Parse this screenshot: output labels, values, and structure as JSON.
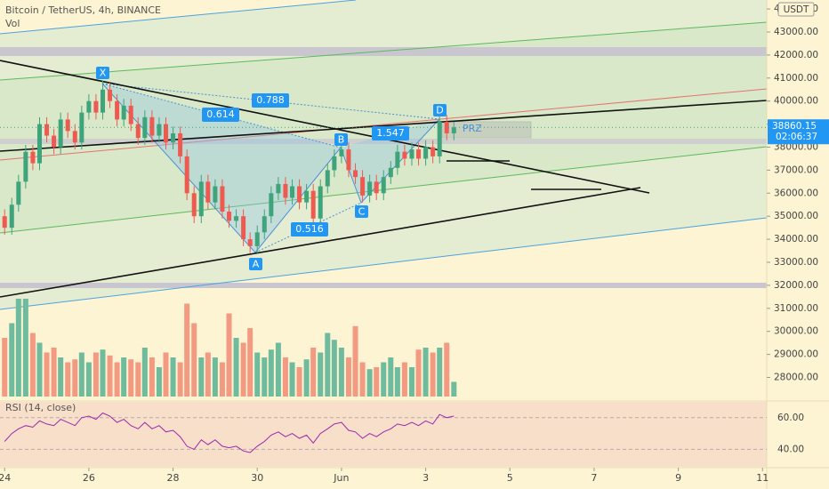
{
  "chart_data": {
    "type": "candlestick",
    "title": "Bitcoin / TetherUS, 4h, BINANCE",
    "currency": "USDT",
    "x": [
      0,
      0.17,
      0.33,
      0.5,
      0.67,
      0.83,
      1,
      1.17,
      1.33,
      1.5,
      1.67,
      1.83,
      2,
      2.17,
      2.33,
      2.5,
      2.67,
      2.83,
      3,
      3.17,
      3.33,
      3.5,
      3.67,
      3.83,
      4,
      4.17,
      4.33,
      4.5,
      4.67,
      4.83,
      5,
      5.17,
      5.33,
      5.5,
      5.67,
      5.83,
      6,
      6.17,
      6.33,
      6.5,
      6.67,
      6.83,
      7,
      7.17,
      7.33,
      7.5,
      7.67,
      7.83,
      8,
      8.17,
      8.33,
      8.5,
      8.67,
      8.83,
      9,
      9.17,
      9.33,
      9.5,
      9.67,
      9.83,
      10,
      10.17,
      10.33,
      10.5,
      10.67
    ],
    "open": [
      35000,
      34500,
      35500,
      36500,
      37800,
      37300,
      39000,
      38500,
      38000,
      39200,
      38700,
      38200,
      39500,
      40000,
      39500,
      40500,
      40000,
      39200,
      39800,
      39000,
      38400,
      39300,
      38500,
      39000,
      38200,
      38600,
      37600,
      36000,
      35000,
      36500,
      35600,
      36300,
      35200,
      34800,
      35000,
      34000,
      33700,
      34300,
      35000,
      36000,
      36400,
      35800,
      36300,
      35600,
      36100,
      34900,
      36300,
      37000,
      37600,
      37900,
      37000,
      36700,
      35900,
      36500,
      36000,
      36700,
      37100,
      37800,
      37500,
      37900,
      37500,
      38000,
      37600,
      39100,
      38600
    ],
    "high": [
      35300,
      35800,
      36800,
      38100,
      38100,
      39300,
      39300,
      38800,
      39500,
      39500,
      39000,
      39800,
      40300,
      40300,
      40900,
      40800,
      40300,
      40100,
      40100,
      39300,
      39600,
      39600,
      39300,
      39300,
      38900,
      38900,
      37900,
      36300,
      36800,
      36800,
      36600,
      36600,
      35500,
      35300,
      35300,
      34300,
      34600,
      35300,
      36300,
      36700,
      36700,
      36600,
      36600,
      36400,
      36400,
      36600,
      37300,
      37900,
      38200,
      38200,
      37300,
      37000,
      36800,
      36800,
      37000,
      37400,
      38100,
      38100,
      38200,
      38200,
      38300,
      38300,
      39500,
      39400,
      39100
    ],
    "low": [
      34200,
      34200,
      35200,
      36200,
      37000,
      37000,
      38200,
      37700,
      37700,
      38400,
      37900,
      37900,
      39200,
      39200,
      39200,
      39700,
      38900,
      38900,
      38700,
      38100,
      38100,
      38200,
      38200,
      37900,
      37900,
      37300,
      35700,
      34700,
      34700,
      35300,
      35300,
      34900,
      34500,
      34500,
      33700,
      33400,
      33400,
      34000,
      34700,
      35700,
      35500,
      35500,
      35300,
      35300,
      34600,
      34600,
      36000,
      36700,
      37300,
      36700,
      36400,
      35600,
      35600,
      35700,
      35700,
      36400,
      36800,
      37200,
      37200,
      37200,
      37200,
      37300,
      37300,
      38300,
      38300
    ],
    "close": [
      34500,
      35500,
      36500,
      37800,
      37300,
      39000,
      38500,
      38000,
      39200,
      38700,
      38200,
      39500,
      40000,
      39500,
      40500,
      40000,
      39200,
      39800,
      39000,
      38400,
      39300,
      38500,
      39000,
      38200,
      38600,
      37600,
      36000,
      35000,
      36500,
      35600,
      36300,
      35200,
      34800,
      35000,
      34000,
      33700,
      34300,
      35000,
      36000,
      36400,
      35800,
      36300,
      35600,
      36100,
      34900,
      36300,
      37000,
      37600,
      37900,
      37000,
      36700,
      35900,
      36500,
      36000,
      36700,
      37100,
      37800,
      37500,
      37900,
      37500,
      38000,
      37600,
      39100,
      38600,
      38860
    ],
    "colors": {
      "up": "#3fa37c",
      "down": "#ef5a50",
      "volume_up": "#6fbb9e",
      "volume_down": "#f39a83"
    },
    "xlim": [
      -0.11,
      18.1
    ],
    "xticks": [
      {
        "value": 0,
        "label": "24"
      },
      {
        "value": 2,
        "label": "26"
      },
      {
        "value": 4,
        "label": "28"
      },
      {
        "value": 6,
        "label": "30"
      },
      {
        "value": 8,
        "label": "Jun"
      },
      {
        "value": 10,
        "label": "3"
      },
      {
        "value": 12,
        "label": "5"
      },
      {
        "value": 14,
        "label": "7"
      },
      {
        "value": 16,
        "label": "9"
      },
      {
        "value": 18,
        "label": "11"
      }
    ],
    "ylim": [
      27170,
      44390
    ],
    "yticks": [
      {
        "value": 28000,
        "label": "28000.00"
      },
      {
        "value": 29000,
        "label": "29000.00"
      },
      {
        "value": 30000,
        "label": "30000.00"
      },
      {
        "value": 31000,
        "label": "31000.00"
      },
      {
        "value": 32000,
        "label": "32000.00"
      },
      {
        "value": 33000,
        "label": "33000.00"
      },
      {
        "value": 34000,
        "label": "34000.00"
      },
      {
        "value": 35000,
        "label": "35000.00"
      },
      {
        "value": 36000,
        "label": "36000.00"
      },
      {
        "value": 37000,
        "label": "37000.00"
      },
      {
        "value": 38000,
        "label": "38000.00"
      },
      {
        "value": 39000,
        "label": "39000.00"
      },
      {
        "value": 40000,
        "label": "40000.00"
      },
      {
        "value": 41000,
        "label": "41000.00"
      },
      {
        "value": 42000,
        "label": "42000.00"
      },
      {
        "value": 43000,
        "label": "43000.00"
      },
      {
        "value": 44000,
        "label": "44000.00"
      }
    ],
    "last_price": {
      "value": 38860.15,
      "label": "38860.15"
    },
    "countdown": "02:06:37",
    "volume": {
      "name": "Vol",
      "ylim": [
        0,
        100
      ],
      "values": [
        60,
        75,
        100,
        100,
        65,
        55,
        45,
        50,
        40,
        35,
        38,
        45,
        35,
        45,
        48,
        42,
        35,
        40,
        38,
        35,
        50,
        40,
        30,
        45,
        40,
        35,
        95,
        75,
        40,
        45,
        40,
        35,
        85,
        60,
        55,
        70,
        45,
        40,
        48,
        55,
        40,
        35,
        30,
        38,
        50,
        45,
        65,
        58,
        50,
        40,
        72,
        35,
        28,
        30,
        35,
        40,
        30,
        35,
        30,
        48,
        50,
        45,
        50,
        55,
        15
      ]
    },
    "rsi": {
      "name": "RSI (14, close)",
      "color": "#9c27b0",
      "ylim": [
        29,
        70
      ],
      "yticks": [
        {
          "value": 40,
          "label": "40.00"
        },
        {
          "value": 60,
          "label": "60.00"
        }
      ],
      "values": [
        45,
        50,
        53,
        55,
        54,
        58,
        56,
        55,
        59,
        57,
        55,
        60,
        61,
        59,
        63,
        61,
        57,
        59,
        55,
        53,
        57,
        53,
        55,
        51,
        52,
        48,
        42,
        40,
        46,
        43,
        46,
        42,
        41,
        42,
        39,
        38,
        42,
        45,
        49,
        51,
        48,
        50,
        47,
        49,
        44,
        50,
        53,
        56,
        57,
        52,
        51,
        47,
        50,
        48,
        51,
        53,
        56,
        55,
        57,
        55,
        58,
        56,
        62,
        60,
        61
      ]
    },
    "pattern_points": [
      "X",
      "A",
      "B",
      "C",
      "D"
    ],
    "fib_labels": [
      "0.788",
      "0.614",
      "1.547",
      "0.516"
    ],
    "zone_label": "PRZ"
  }
}
